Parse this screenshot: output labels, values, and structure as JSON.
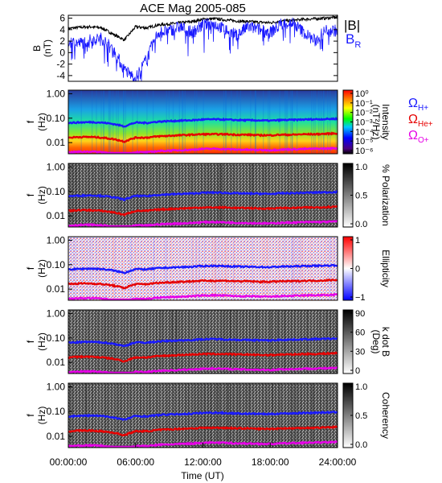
{
  "title": "ACE Mag 2005-085",
  "xlabel": "Time (UT)",
  "xticks": [
    "00:00:00",
    "06:00:00",
    "12:00:00",
    "18:00:00",
    "24:00:00"
  ],
  "legend_top": {
    "B": "|B|",
    "BR": "B",
    "BR_sub": "R"
  },
  "cyclotron": {
    "sym": "Ω",
    "H": {
      "sub": "H+",
      "color": "#1a1aff"
    },
    "He": {
      "sub": "He+",
      "color": "#e60000"
    },
    "O": {
      "sub": "O+",
      "color": "#e600e6"
    }
  },
  "colors": {
    "B": "#000000",
    "BR": "#1a1aff",
    "H": "#1a1aff",
    "He": "#e60000",
    "O": "#e600e6"
  },
  "chart_data": [
    {
      "type": "line",
      "ylabel": "B",
      "yunit": "(nT)",
      "ylim": [
        -5,
        6.5
      ],
      "yticks": [
        "6",
        "4",
        "2",
        "0",
        "-2",
        "-4"
      ],
      "ytick_values": [
        6,
        4,
        2,
        0,
        -2,
        -4
      ],
      "x": [
        0,
        1,
        2,
        3,
        4,
        5,
        6,
        7,
        8,
        9,
        10,
        11,
        12,
        13,
        14,
        15,
        16,
        17,
        18,
        19,
        20,
        21,
        22,
        23,
        24
      ],
      "series": [
        {
          "name": "|B|",
          "values": [
            4.2,
            4.4,
            4.5,
            4.3,
            3.2,
            2.2,
            4.5,
            4.3,
            4.8,
            5.0,
            5.2,
            5.4,
            5.8,
            5.9,
            5.7,
            5.5,
            5.4,
            5.3,
            5.2,
            5.5,
            5.6,
            5.8,
            5.9,
            6.0,
            6.2
          ]
        },
        {
          "name": "B_R",
          "values": [
            2.0,
            1.6,
            2.2,
            2.5,
            0.5,
            -3.0,
            -4.5,
            -1.0,
            3.5,
            3.8,
            4.5,
            3.5,
            4.8,
            5.0,
            4.0,
            3.0,
            4.5,
            4.0,
            3.5,
            5.0,
            5.2,
            3.5,
            2.0,
            4.0,
            3.8
          ]
        }
      ]
    },
    {
      "type": "heatmap",
      "ylabel": "f",
      "yunit": "(Hz)",
      "yticks": [
        "1.00",
        "0.10",
        "0.01"
      ],
      "colorbar": {
        "label": "Intensity",
        "unit": "(nT²/Hz)",
        "ticks": [
          "10⁰",
          "10⁻¹",
          "10⁻²",
          "10⁻³",
          "10⁻⁴",
          "10⁻⁵",
          "10⁻⁶"
        ],
        "scale": "rainbow"
      }
    },
    {
      "type": "heatmap",
      "ylabel": "f",
      "yunit": "(Hz)",
      "yticks": [
        "1.00",
        "0.10",
        "0.01"
      ],
      "colorbar": {
        "label": "% Polarization",
        "unit": "",
        "ticks": [
          "1.0",
          "0.5",
          "0.0"
        ],
        "scale": "gray"
      }
    },
    {
      "type": "heatmap",
      "ylabel": "f",
      "yunit": "(Hz)",
      "yticks": [
        "1.00",
        "0.10",
        "0.01"
      ],
      "colorbar": {
        "label": "Ellipticity",
        "unit": "",
        "ticks": [
          "1",
          "0",
          "−1"
        ],
        "scale": "bwr"
      }
    },
    {
      "type": "heatmap",
      "ylabel": "f",
      "yunit": "(Hz)",
      "yticks": [
        "1.00",
        "0.10",
        "0.01"
      ],
      "colorbar": {
        "label": "k dot B",
        "unit": "(Deg)",
        "ticks": [
          "90",
          "60",
          "30",
          "0"
        ],
        "scale": "gray"
      }
    },
    {
      "type": "heatmap",
      "ylabel": "f",
      "yunit": "(Hz)",
      "yticks": [
        "1.00",
        "0.10",
        "0.01"
      ],
      "colorbar": {
        "label": "Coherency",
        "unit": "",
        "ticks": [
          "1.0",
          "0.5",
          "0.0"
        ],
        "scale": "gray"
      }
    }
  ],
  "cyclotron_series": {
    "x": [
      0,
      1,
      2,
      3,
      4,
      5,
      6,
      7,
      8,
      9,
      10,
      11,
      12,
      13,
      14,
      15,
      16,
      17,
      18,
      19,
      20,
      21,
      22,
      23,
      24
    ],
    "H_hz": [
      0.064,
      0.067,
      0.069,
      0.066,
      0.058,
      0.046,
      0.066,
      0.064,
      0.072,
      0.076,
      0.079,
      0.082,
      0.088,
      0.09,
      0.087,
      0.084,
      0.082,
      0.081,
      0.079,
      0.084,
      0.085,
      0.088,
      0.09,
      0.092,
      0.095
    ],
    "He_hz": [
      0.016,
      0.017,
      0.017,
      0.016,
      0.014,
      0.011,
      0.016,
      0.016,
      0.018,
      0.019,
      0.02,
      0.021,
      0.022,
      0.022,
      0.022,
      0.021,
      0.021,
      0.02,
      0.02,
      0.021,
      0.021,
      0.022,
      0.022,
      0.023,
      0.024
    ],
    "O_hz": [
      0.004,
      0.0042,
      0.0043,
      0.0041,
      0.0036,
      0.0029,
      0.0041,
      0.004,
      0.0045,
      0.0047,
      0.0049,
      0.0051,
      0.0055,
      0.0056,
      0.0054,
      0.0052,
      0.0051,
      0.005,
      0.0049,
      0.0052,
      0.0053,
      0.0055,
      0.0056,
      0.0057,
      0.0059
    ]
  }
}
